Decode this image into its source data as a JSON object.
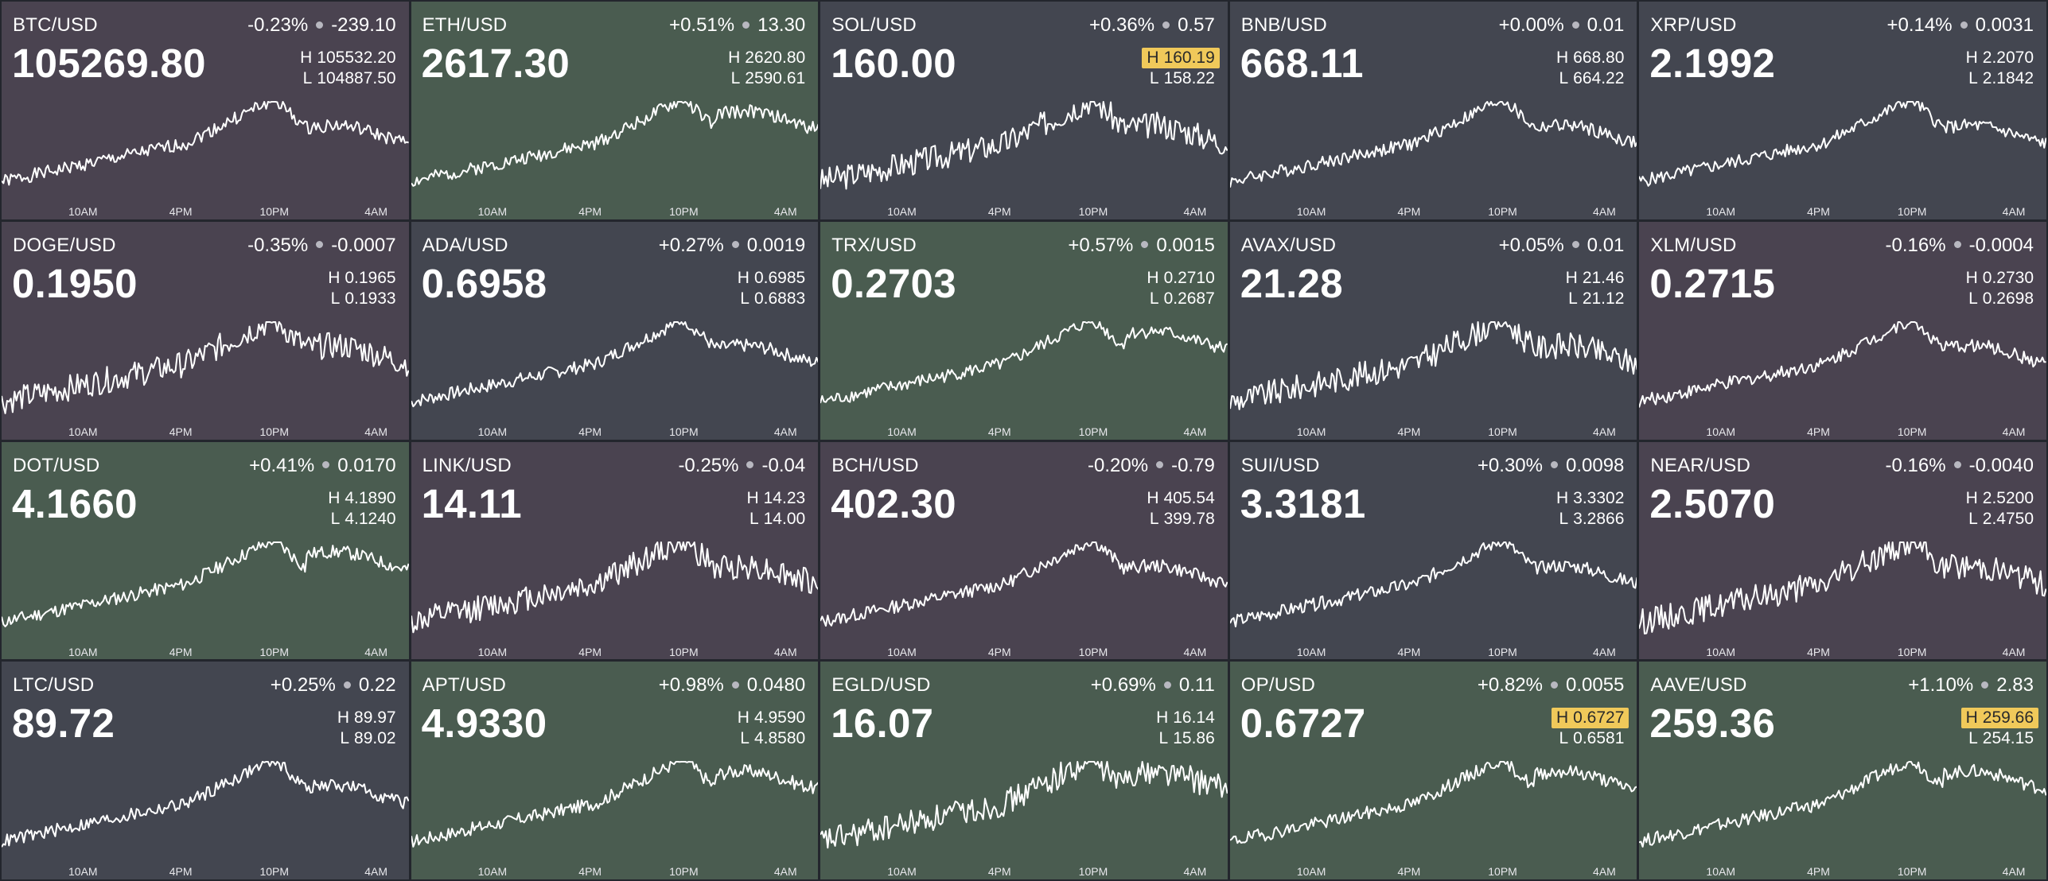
{
  "colors": {
    "down": "#4a4350",
    "up": "#4a5c50",
    "flat": "#434650",
    "highlight": "#f0c95a",
    "line": "#ffffff"
  },
  "axis_labels": [
    "10AM",
    "4PM",
    "10PM",
    "4AM"
  ],
  "high_prefix": "H",
  "low_prefix": "L",
  "tiles": [
    {
      "symbol": "BTC/USD",
      "change_pct": "-0.23%",
      "change_abs": "-239.10",
      "price": "105269.80",
      "high": "105532.20",
      "low": "104887.50",
      "trend": "down",
      "high_highlight": false
    },
    {
      "symbol": "ETH/USD",
      "change_pct": "+0.51%",
      "change_abs": "13.30",
      "price": "2617.30",
      "high": "2620.80",
      "low": "2590.61",
      "trend": "up",
      "high_highlight": false
    },
    {
      "symbol": "SOL/USD",
      "change_pct": "+0.36%",
      "change_abs": "0.57",
      "price": "160.00",
      "high": "160.19",
      "low": "158.22",
      "trend": "flat",
      "high_highlight": true
    },
    {
      "symbol": "BNB/USD",
      "change_pct": "+0.00%",
      "change_abs": "0.01",
      "price": "668.11",
      "high": "668.80",
      "low": "664.22",
      "trend": "flat",
      "high_highlight": false
    },
    {
      "symbol": "XRP/USD",
      "change_pct": "+0.14%",
      "change_abs": "0.0031",
      "price": "2.1992",
      "high": "2.2070",
      "low": "2.1842",
      "trend": "flat",
      "high_highlight": false
    },
    {
      "symbol": "DOGE/USD",
      "change_pct": "-0.35%",
      "change_abs": "-0.0007",
      "price": "0.1950",
      "high": "0.1965",
      "low": "0.1933",
      "trend": "down",
      "high_highlight": false
    },
    {
      "symbol": "ADA/USD",
      "change_pct": "+0.27%",
      "change_abs": "0.0019",
      "price": "0.6958",
      "high": "0.6985",
      "low": "0.6883",
      "trend": "flat",
      "high_highlight": false
    },
    {
      "symbol": "TRX/USD",
      "change_pct": "+0.57%",
      "change_abs": "0.0015",
      "price": "0.2703",
      "high": "0.2710",
      "low": "0.2687",
      "trend": "up",
      "high_highlight": false
    },
    {
      "symbol": "AVAX/USD",
      "change_pct": "+0.05%",
      "change_abs": "0.01",
      "price": "21.28",
      "high": "21.46",
      "low": "21.12",
      "trend": "flat",
      "high_highlight": false
    },
    {
      "symbol": "XLM/USD",
      "change_pct": "-0.16%",
      "change_abs": "-0.0004",
      "price": "0.2715",
      "high": "0.2730",
      "low": "0.2698",
      "trend": "down",
      "high_highlight": false
    },
    {
      "symbol": "DOT/USD",
      "change_pct": "+0.41%",
      "change_abs": "0.0170",
      "price": "4.1660",
      "high": "4.1890",
      "low": "4.1240",
      "trend": "up",
      "high_highlight": false
    },
    {
      "symbol": "LINK/USD",
      "change_pct": "-0.25%",
      "change_abs": "-0.04",
      "price": "14.11",
      "high": "14.23",
      "low": "14.00",
      "trend": "down",
      "high_highlight": false
    },
    {
      "symbol": "BCH/USD",
      "change_pct": "-0.20%",
      "change_abs": "-0.79",
      "price": "402.30",
      "high": "405.54",
      "low": "399.78",
      "trend": "down",
      "high_highlight": false
    },
    {
      "symbol": "SUI/USD",
      "change_pct": "+0.30%",
      "change_abs": "0.0098",
      "price": "3.3181",
      "high": "3.3302",
      "low": "3.2866",
      "trend": "flat",
      "high_highlight": false
    },
    {
      "symbol": "NEAR/USD",
      "change_pct": "-0.16%",
      "change_abs": "-0.0040",
      "price": "2.5070",
      "high": "2.5200",
      "low": "2.4750",
      "trend": "down",
      "high_highlight": false
    },
    {
      "symbol": "LTC/USD",
      "change_pct": "+0.25%",
      "change_abs": "0.22",
      "price": "89.72",
      "high": "89.97",
      "low": "89.02",
      "trend": "flat",
      "high_highlight": false
    },
    {
      "symbol": "APT/USD",
      "change_pct": "+0.98%",
      "change_abs": "0.0480",
      "price": "4.9330",
      "high": "4.9590",
      "low": "4.8580",
      "trend": "up",
      "high_highlight": false
    },
    {
      "symbol": "EGLD/USD",
      "change_pct": "+0.69%",
      "change_abs": "0.11",
      "price": "16.07",
      "high": "16.14",
      "low": "15.86",
      "trend": "up",
      "high_highlight": false
    },
    {
      "symbol": "OP/USD",
      "change_pct": "+0.82%",
      "change_abs": "0.0055",
      "price": "0.6727",
      "high": "0.6727",
      "low": "0.6581",
      "trend": "up",
      "high_highlight": true
    },
    {
      "symbol": "AAVE/USD",
      "change_pct": "+1.10%",
      "change_abs": "2.83",
      "price": "259.36",
      "high": "259.66",
      "low": "254.15",
      "trend": "up",
      "high_highlight": true
    }
  ]
}
